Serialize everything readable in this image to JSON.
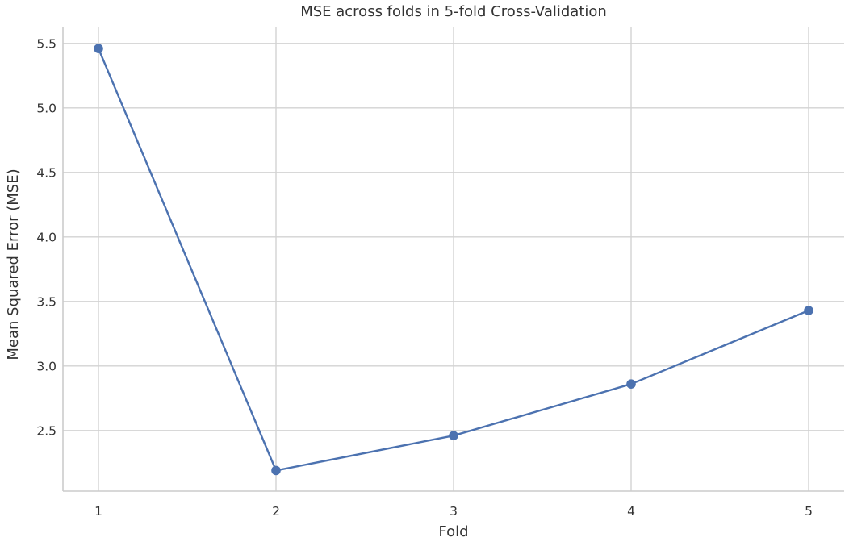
{
  "chart_data": {
    "type": "line",
    "title": "MSE across folds in 5-fold Cross-Validation",
    "xlabel": "Fold",
    "ylabel": "Mean Squared Error (MSE)",
    "x": [
      1,
      2,
      3,
      4,
      5
    ],
    "x_tick_labels": [
      "1",
      "2",
      "3",
      "4",
      "5"
    ],
    "y_ticks": [
      2.5,
      3.0,
      3.5,
      4.0,
      4.5,
      5.0,
      5.5
    ],
    "y_tick_labels": [
      "2.5",
      "3.0",
      "3.5",
      "4.0",
      "4.5",
      "5.0",
      "5.5"
    ],
    "xlim": [
      0.8,
      5.2
    ],
    "ylim": [
      2.03,
      5.63
    ],
    "series": [
      {
        "values": [
          5.46,
          2.19,
          2.46,
          2.86,
          3.43
        ],
        "color": "#4c72b0",
        "marker": "circle"
      }
    ],
    "grid": true,
    "style": {
      "grid_color": "#d3d3d3",
      "spine_color": "#cccccc",
      "text_color": "#333333"
    }
  }
}
